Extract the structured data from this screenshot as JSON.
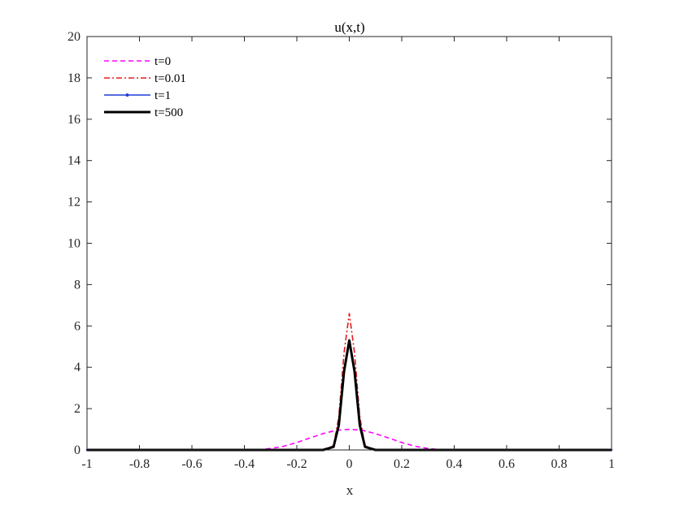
{
  "chart_data": {
    "type": "line",
    "title": "u(x,t)",
    "xlabel": "x",
    "ylabel": "",
    "xlim": [
      -1,
      1
    ],
    "ylim": [
      0,
      20
    ],
    "xticks": [
      -1,
      -0.8,
      -0.6,
      -0.4,
      -0.2,
      0,
      0.2,
      0.4,
      0.6,
      0.8,
      1
    ],
    "xtick_labels": [
      "-1",
      "-0.8",
      "-0.6",
      "-0.4",
      "-0.2",
      "0",
      "0.2",
      "0.4",
      "0.6",
      "0.8",
      "1"
    ],
    "yticks": [
      0,
      2,
      4,
      6,
      8,
      10,
      12,
      14,
      16,
      18,
      20
    ],
    "ytick_labels": [
      "0",
      "2",
      "4",
      "6",
      "8",
      "10",
      "12",
      "14",
      "16",
      "18",
      "20"
    ],
    "grid": false,
    "legend_position": "top-left",
    "series": [
      {
        "name": "t=0",
        "color": "#ff00ff",
        "style": "dashed",
        "x": [
          -1,
          -0.5,
          -0.4,
          -0.35,
          -0.3,
          -0.25,
          -0.2,
          -0.15,
          -0.1,
          -0.05,
          0,
          0.05,
          0.1,
          0.15,
          0.2,
          0.25,
          0.3,
          0.35,
          0.4,
          0.5,
          1
        ],
        "y": [
          0,
          0,
          0,
          0.01,
          0.07,
          0.18,
          0.36,
          0.58,
          0.79,
          0.95,
          1.0,
          0.95,
          0.79,
          0.58,
          0.36,
          0.18,
          0.07,
          0.01,
          0,
          0,
          0
        ]
      },
      {
        "name": "t=0.01",
        "color": "#e31a1c",
        "style": "dashdot",
        "x": [
          -1,
          -0.1,
          -0.06,
          -0.04,
          -0.02,
          0,
          0.02,
          0.04,
          0.06,
          0.1,
          1
        ],
        "y": [
          0,
          0,
          0.2,
          1.6,
          4.7,
          6.6,
          4.7,
          1.6,
          0.2,
          0,
          0
        ]
      },
      {
        "name": "t=1",
        "color": "#1f3fd6",
        "style": "solid-dotted",
        "x": [
          -1,
          -0.1,
          -0.06,
          -0.04,
          -0.02,
          0,
          0.02,
          0.04,
          0.06,
          0.1,
          1
        ],
        "y": [
          0,
          0,
          0.15,
          1.2,
          3.8,
          5.3,
          3.8,
          1.2,
          0.15,
          0,
          0
        ]
      },
      {
        "name": "t=500",
        "color": "#000000",
        "style": "solid-thick",
        "x": [
          -1,
          -0.1,
          -0.06,
          -0.04,
          -0.02,
          0,
          0.02,
          0.04,
          0.06,
          0.1,
          1
        ],
        "y": [
          0,
          0,
          0.15,
          1.2,
          3.8,
          5.3,
          3.8,
          1.2,
          0.15,
          0,
          0
        ]
      }
    ]
  }
}
